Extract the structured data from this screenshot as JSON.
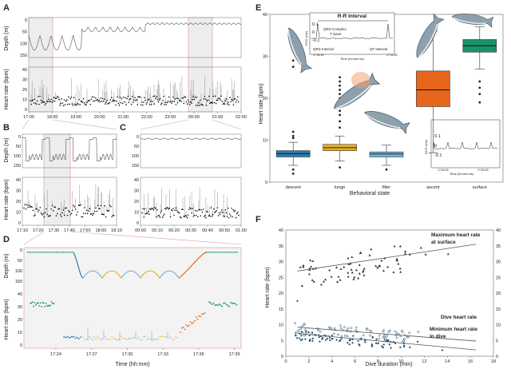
{
  "panels": {
    "A": {
      "label": "A"
    },
    "B": {
      "label": "B"
    },
    "C": {
      "label": "C"
    },
    "D": {
      "label": "D"
    },
    "E": {
      "label": "E"
    },
    "F": {
      "label": "F"
    }
  },
  "chart_data": [
    {
      "panel": "A",
      "type": "line",
      "ylabel_top": "Depth (m)",
      "ylabel_bottom": "Heart rate (bpm)",
      "depth_ticks": [
        "0",
        "50",
        "100",
        "150"
      ],
      "hr_ticks": [
        "0",
        "10",
        "20",
        "30",
        "40"
      ],
      "xticks": [
        "17:00",
        "18:00",
        "19:00",
        "20:00",
        "21:00",
        "22:00",
        "23:00",
        "00:00",
        "01:00",
        "02:00"
      ]
    },
    {
      "panel": "B",
      "type": "line",
      "ylabel_top": "Depth (m)",
      "ylabel_bottom": "Heart rate (bpm)",
      "depth_ticks": [
        "0",
        "50",
        "100",
        "150"
      ],
      "hr_ticks": [
        "0",
        "10",
        "20",
        "30",
        "40"
      ],
      "xticks": [
        "17:10",
        "17:20",
        "17:30",
        "17:40",
        "17:50",
        "18:00",
        "18:10"
      ]
    },
    {
      "panel": "C",
      "type": "line",
      "depth_ticks": [
        "0",
        "50",
        "100",
        "150"
      ],
      "hr_ticks": [
        "0",
        "10",
        "20",
        "30",
        "40"
      ],
      "xticks": [
        "00:00",
        "00:10",
        "00:20",
        "00:30",
        "00:40",
        "00:50",
        "01:00"
      ]
    },
    {
      "panel": "D",
      "type": "line",
      "ylabel_top": "Depth (m)",
      "ylabel_bottom": "Heart rate (bpm)",
      "xlabel": "Time (hh:mm)",
      "depth_ticks": [
        "0",
        "50",
        "100",
        "150"
      ],
      "hr_ticks": [
        "0",
        "10",
        "20",
        "30",
        "40"
      ],
      "xticks": [
        "17:24",
        "17:27",
        "17:30",
        "17:33",
        "17:36",
        "17:39"
      ]
    },
    {
      "panel": "E",
      "type": "box",
      "ylabel": "Heart rate (bpm)",
      "xlabel": "Behavioral state",
      "ylim": [
        0,
        40
      ],
      "yticks": [
        "0",
        "10",
        "20",
        "30",
        "40"
      ],
      "categories": [
        "descent",
        "lunge",
        "filter",
        "ascent",
        "surface"
      ],
      "colors": [
        "#2b7bb2",
        "#e8b01f",
        "#73b3d8",
        "#e8661c",
        "#17936b"
      ],
      "boxes": [
        {
          "q1": 6,
          "median": 6.8,
          "q3": 7.5,
          "whisker_low": 4,
          "whisker_high": 9.5,
          "outliers": [
            2,
            3,
            10.5,
            11,
            12,
            27.5,
            29
          ]
        },
        {
          "q1": 7.5,
          "median": 8.2,
          "q3": 9,
          "whisker_low": 5,
          "whisker_high": 11,
          "outliers": [
            3.5,
            13,
            14.5,
            16,
            17,
            18,
            19,
            20,
            21,
            22,
            23,
            24,
            25
          ]
        },
        {
          "q1": 6,
          "median": 6.7,
          "q3": 7.2,
          "whisker_low": 4,
          "whisker_high": 8.8,
          "outliers": [
            3
          ]
        },
        {
          "q1": 18,
          "median": 22,
          "q3": 26.5,
          "whisker_low": 7,
          "whisker_high": 36,
          "outliers": []
        },
        {
          "q1": 31,
          "median": 32.5,
          "q3": 34,
          "whisker_low": 27,
          "whisker_high": 37,
          "outliers": [
            24,
            22.5,
            21,
            19
          ]
        }
      ],
      "inset_top": {
        "title": "R-R Interval",
        "labels": [
          "QRS Complex",
          "T wave",
          "QRS Interval",
          "QT Interval"
        ],
        "ylabel": "ECG (mv)",
        "xlabel": "Time (hh:mm:ss)",
        "yticks": [
          "0.1",
          "0",
          "-0.1"
        ],
        "xticks": [
          "17:34:30",
          "17:34:40"
        ]
      },
      "inset_bottom": {
        "ylabel": "ECG (mv)",
        "xlabel": "Time (hh:mm:ss)",
        "yticks": [
          "0.1",
          "0",
          "-0.1"
        ],
        "xticks": [
          "17:50:30",
          "17:50:40"
        ]
      }
    },
    {
      "panel": "F",
      "type": "scatter",
      "xlabel": "Dive duration (min)",
      "ylabel": "Heart rate (bpm)",
      "xlim": [
        0,
        18
      ],
      "ylim": [
        0,
        40
      ],
      "xticks": [
        "0",
        "2",
        "4",
        "6",
        "8",
        "10",
        "12",
        "14",
        "16",
        "18"
      ],
      "yticks": [
        "0",
        "5",
        "10",
        "15",
        "20",
        "25",
        "30",
        "35",
        "40"
      ],
      "series": [
        {
          "name": "Maximum heart rate at surface",
          "marker": "triangle",
          "fit": [
            [
              1,
              27
            ],
            [
              16.5,
              35.5
            ]
          ]
        },
        {
          "name": "Dive heart rate",
          "marker": "circle-open",
          "fit": [
            [
              1,
              9.2
            ],
            [
              16.5,
              4.8
            ]
          ]
        },
        {
          "name": "Minimum heart rate in dive",
          "marker": "circle-filled",
          "fit": [
            [
              1,
              7.2
            ],
            [
              16.5,
              2
            ]
          ]
        }
      ]
    }
  ]
}
